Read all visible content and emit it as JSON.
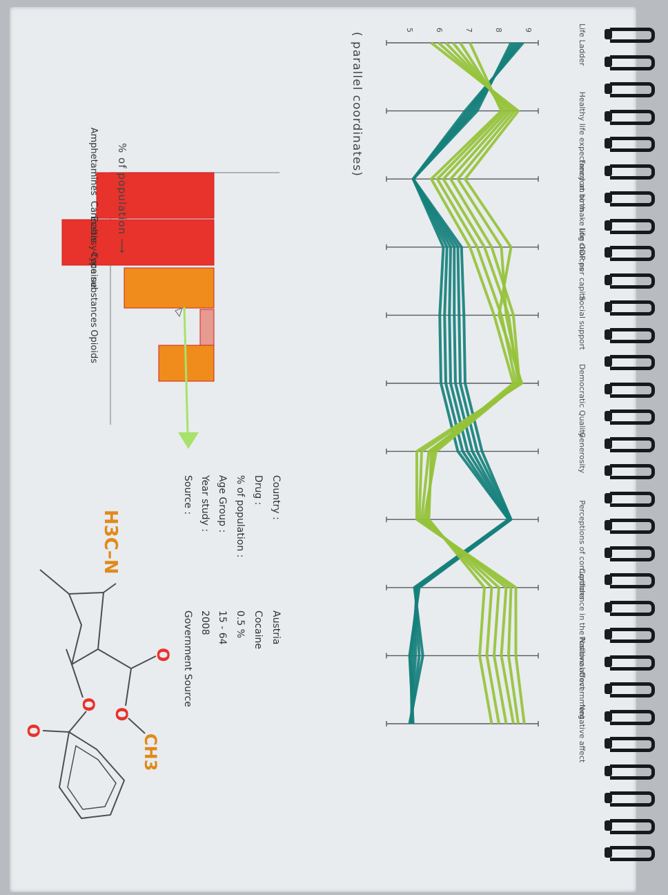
{
  "parallel_title": "( parallel coordinates)",
  "bar_axis_label": "% of population",
  "info": {
    "labels": [
      "Country :",
      "Drug :",
      "% of population :",
      "Age Group :",
      "Year study :",
      "Source :"
    ],
    "values": [
      "Austria",
      "Cocaine",
      "0.5 %",
      "15 - 64",
      "2008",
      "Government Source"
    ]
  },
  "molecule": {
    "n_label": "H3C–N",
    "ch3_label": "CH3",
    "o_label": "O"
  },
  "colors": {
    "teal": "#16807c",
    "green": "#95c23a",
    "red": "#e8322c",
    "orange": "#f08c1c",
    "pink": "#e79a8f",
    "ink": "#555a5e",
    "arrow": "#a7e26a"
  },
  "chart_data": [
    {
      "type": "parallel_coordinates",
      "title": "",
      "dimensions": [
        "Life Ladder",
        "Healthy life expectancy at birth",
        "Freedom to make life choices",
        "Log GDP per capita",
        "Social support",
        "Democratic Quality",
        "Generosity",
        "Perceptions of corruptions",
        "Confidence in the National Government",
        "Positive affect",
        "Negative affect"
      ],
      "life_ladder_ticks": [
        "5",
        "6",
        "7",
        "8",
        "9"
      ],
      "series": [
        {
          "group": "teal",
          "values": [
            0.96,
            0.48,
            0.05,
            0.3,
            0.27,
            0.28,
            0.42,
            0.84,
            0.06,
            0.13,
            0.02
          ]
        },
        {
          "group": "teal",
          "values": [
            0.94,
            0.5,
            0.05,
            0.33,
            0.31,
            0.32,
            0.46,
            0.84,
            0.07,
            0.1,
            0.03
          ]
        },
        {
          "group": "teal",
          "values": [
            0.92,
            0.52,
            0.05,
            0.36,
            0.35,
            0.36,
            0.5,
            0.85,
            0.08,
            0.07,
            0.03
          ]
        },
        {
          "group": "teal",
          "values": [
            0.9,
            0.54,
            0.05,
            0.39,
            0.39,
            0.4,
            0.54,
            0.85,
            0.08,
            0.05,
            0.04
          ]
        },
        {
          "group": "teal",
          "values": [
            0.88,
            0.56,
            0.05,
            0.42,
            0.43,
            0.44,
            0.58,
            0.86,
            0.09,
            0.03,
            0.04
          ]
        },
        {
          "group": "teal",
          "values": [
            0.86,
            0.58,
            0.05,
            0.45,
            0.47,
            0.48,
            0.62,
            0.86,
            0.1,
            0.02,
            0.05
          ]
        },
        {
          "group": "green",
          "values": [
            0.52,
            0.78,
            0.2,
            0.52,
            0.72,
            0.88,
            0.2,
            0.18,
            0.64,
            0.6,
            0.7
          ]
        },
        {
          "group": "green",
          "values": [
            0.44,
            0.8,
            0.25,
            0.58,
            0.78,
            0.9,
            0.22,
            0.16,
            0.7,
            0.66,
            0.76
          ]
        },
        {
          "group": "green",
          "values": [
            0.38,
            0.83,
            0.3,
            0.64,
            0.84,
            0.92,
            0.24,
            0.14,
            0.76,
            0.72,
            0.82
          ]
        },
        {
          "group": "green",
          "values": [
            0.32,
            0.86,
            0.36,
            0.7,
            0.88,
            0.93,
            0.18,
            0.12,
            0.82,
            0.78,
            0.88
          ]
        },
        {
          "group": "green",
          "values": [
            0.26,
            0.89,
            0.42,
            0.78,
            0.82,
            0.94,
            0.12,
            0.1,
            0.86,
            0.84,
            0.92
          ]
        },
        {
          "group": "green",
          "values": [
            0.2,
            0.92,
            0.48,
            0.86,
            0.76,
            0.95,
            0.08,
            0.08,
            0.9,
            0.9,
            0.97
          ]
        }
      ]
    },
    {
      "type": "bar",
      "title": "",
      "xlabel": "% of population",
      "categories": [
        "Amphetamines",
        "Cannabis",
        "Cocaine",
        "Ecstasy-type substances",
        "Opioids"
      ],
      "values": [
        1.7,
        2.2,
        1.3,
        0.2,
        0.8
      ],
      "colors": [
        "#e8322c",
        "#e8322c",
        "#f08c1c",
        "#e79a8f",
        "#f08c1c"
      ],
      "xlim": [
        0,
        2.5
      ]
    }
  ]
}
